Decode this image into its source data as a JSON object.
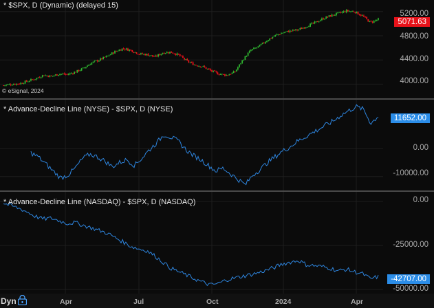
{
  "panels": {
    "spx": {
      "title": "* $SPX, D (Dynamic) (delayed 15)",
      "watermark": "© eSignal, 2024",
      "ticks": [
        "5200.00",
        "4800.00",
        "4400.00",
        "4000.00"
      ],
      "last_value": "5071.63",
      "badge_color": "#e8121a",
      "up_color": "#2fb52f",
      "down_color": "#e8121a"
    },
    "nyse": {
      "title": "* Advance-Decline Line (NYSE) - $SPX, D (NYSE)",
      "ticks": [
        "0.00",
        "-10000.00"
      ],
      "last_value": "11652.00",
      "line_color": "#2e86e0",
      "badge_color": "#2b8de8"
    },
    "nasdaq": {
      "title": "* Advance-Decline Line (NASDAQ) - $SPX, D (NASDAQ)",
      "ticks": [
        "0.00",
        "-25000.00",
        "-50000.00"
      ],
      "last_value": "-42707.00",
      "line_color": "#2e86e0",
      "badge_color": "#2b8de8"
    }
  },
  "x_axis": {
    "ticks": [
      "Apr",
      "Jul",
      "Oct",
      "2024",
      "Apr"
    ],
    "mode_label": "Dyn",
    "lock_icon": "lock-icon"
  },
  "chart_data": [
    {
      "type": "candlestick",
      "name": "$SPX",
      "ylim": [
        3800,
        5300
      ],
      "y": [
        3980,
        4000,
        4010,
        4050,
        4090,
        4150,
        4130,
        4170,
        4160,
        4200,
        4260,
        4350,
        4400,
        4460,
        4540,
        4590,
        4560,
        4500,
        4490,
        4450,
        4520,
        4530,
        4480,
        4380,
        4320,
        4290,
        4220,
        4170,
        4150,
        4200,
        4400,
        4560,
        4620,
        4720,
        4800,
        4850,
        4880,
        4900,
        4960,
        5010,
        5080,
        5130,
        5170,
        5210,
        5200,
        5130,
        5020,
        5071.63
      ]
    },
    {
      "type": "line",
      "name": "Advance-Decline Line (NYSE)",
      "ylim": [
        -14000,
        16000
      ],
      "y": [
        -1500,
        -3000,
        -5500,
        -8000,
        -10500,
        -9500,
        -7000,
        -3500,
        -2000,
        -3000,
        -4500,
        -6500,
        -5000,
        -4000,
        -6000,
        -3500,
        -500,
        2000,
        5000,
        4000,
        2500,
        -500,
        -2500,
        -4000,
        -6000,
        -8000,
        -7000,
        -9000,
        -11000,
        -13000,
        -9500,
        -7500,
        -5000,
        -3000,
        -1000,
        500,
        2500,
        4000,
        5500,
        7000,
        8500,
        10000,
        12000,
        13500,
        15000,
        14000,
        9000,
        11652
      ]
    },
    {
      "type": "line",
      "name": "Advance-Decline Line (NASDAQ)",
      "ylim": [
        -50000,
        0
      ],
      "y": [
        -1000,
        -2500,
        -4000,
        -6000,
        -8500,
        -10000,
        -9500,
        -11000,
        -12500,
        -12000,
        -13500,
        -15000,
        -16500,
        -18000,
        -20500,
        -23000,
        -25500,
        -27000,
        -28000,
        -31000,
        -34500,
        -38000,
        -40000,
        -42000,
        -44000,
        -46000,
        -47500,
        -46500,
        -44500,
        -43500,
        -42500,
        -41500,
        -40500,
        -39000,
        -37500,
        -35500,
        -34500,
        -33500,
        -36000,
        -36500,
        -37000,
        -38000,
        -39500,
        -38500,
        -40000,
        -41000,
        -44000,
        -42707
      ]
    }
  ]
}
